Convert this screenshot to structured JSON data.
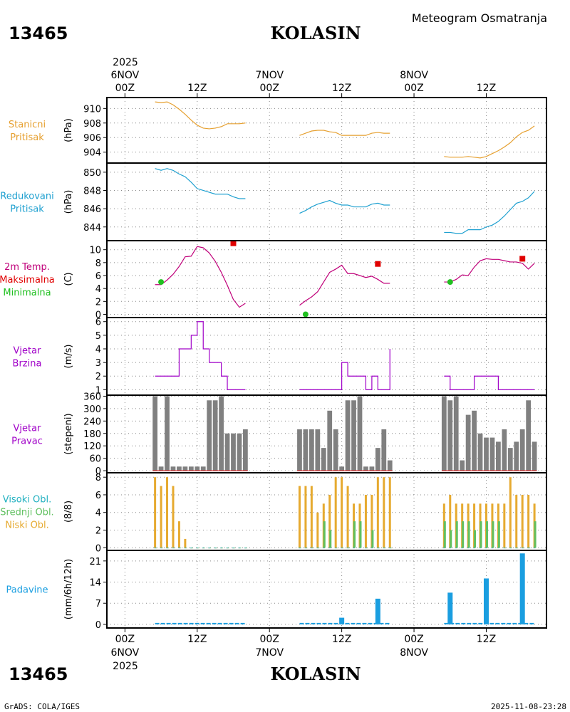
{
  "header": {
    "station_id": "13465",
    "station_name": "KOLASIN",
    "meteogram_title": "Meteogram Osmatranja",
    "footer_left": "GrADS: COLA/IGES",
    "footer_right": "2025-11-08-23:28"
  },
  "time_axis": {
    "year": "2025",
    "day_labels": [
      "6NOV",
      "7NOV",
      "8NOV"
    ],
    "tick_labels": [
      "00Z",
      "12Z",
      "00Z",
      "12Z",
      "00Z",
      "12Z"
    ],
    "tick_hours": [
      0,
      12,
      24,
      36,
      48,
      60
    ],
    "range_hours": [
      -3,
      70
    ]
  },
  "colors": {
    "pressure": "#e6a030",
    "reduced_pressure": "#1ea0d0",
    "temp": "#c0007a",
    "max": "#e00000",
    "min": "#20c020",
    "wind": "#a000c8",
    "dir_bar": "#808080",
    "low_cloud": "#e6aa30",
    "mid_cloud": "#60c060",
    "high_cloud": "#20b0c0",
    "precip": "#1a9ee0"
  },
  "chart_data": [
    {
      "type": "line",
      "id": "station_pressure",
      "labels": [
        "Stanicni",
        "Pritisak"
      ],
      "ylabel": "(hPa)",
      "ylim": [
        902.5,
        911.5
      ],
      "yticks": [
        904,
        906,
        908,
        910
      ],
      "series": [
        {
          "name": "Stanicni Pritisak",
          "segments": [
            {
              "x": [
                5,
                6,
                7,
                8,
                9,
                10,
                11,
                12,
                13,
                14,
                15,
                16,
                17,
                18,
                19,
                20
              ],
              "y": [
                910.9,
                910.8,
                910.9,
                910.5,
                909.9,
                909.2,
                908.4,
                907.7,
                907.3,
                907.2,
                907.3,
                907.5,
                907.9,
                907.9,
                907.9,
                908.0
              ]
            },
            {
              "x": [
                29,
                30,
                31,
                32,
                33,
                34,
                35,
                36,
                37,
                38,
                39,
                40,
                41,
                42,
                43,
                44
              ],
              "y": [
                906.3,
                906.6,
                906.9,
                907.0,
                907.0,
                906.8,
                906.7,
                906.3,
                906.3,
                906.3,
                906.3,
                906.3,
                906.6,
                906.7,
                906.6,
                906.6
              ]
            },
            {
              "x": [
                53,
                54,
                55,
                56,
                57,
                58,
                59,
                60,
                61,
                62,
                63,
                64,
                65,
                66,
                67,
                68
              ],
              "y": [
                903.4,
                903.3,
                903.3,
                903.3,
                903.4,
                903.3,
                903.2,
                903.4,
                903.8,
                904.2,
                904.7,
                905.3,
                906.1,
                906.7,
                907.0,
                907.6
              ]
            }
          ]
        }
      ]
    },
    {
      "type": "line",
      "id": "reduced_pressure",
      "labels": [
        "Redukovani",
        "Pritisak"
      ],
      "ylabel": "(hPa)",
      "ylim": [
        842.5,
        851.0
      ],
      "yticks": [
        844,
        846,
        848,
        850
      ],
      "series": [
        {
          "name": "Redukovani Pritisak",
          "segments": [
            {
              "x": [
                5,
                6,
                7,
                8,
                9,
                10,
                11,
                12,
                13,
                14,
                15,
                16,
                17,
                18,
                19,
                20
              ],
              "y": [
                850.4,
                850.2,
                850.4,
                850.2,
                849.8,
                849.5,
                848.9,
                848.2,
                848.0,
                847.8,
                847.6,
                847.6,
                847.6,
                847.3,
                847.1,
                847.1
              ]
            },
            {
              "x": [
                29,
                30,
                31,
                32,
                33,
                34,
                35,
                36,
                37,
                38,
                39,
                40,
                41,
                42,
                43,
                44
              ],
              "y": [
                845.5,
                845.8,
                846.2,
                846.5,
                846.7,
                846.9,
                846.6,
                846.4,
                846.4,
                846.2,
                846.2,
                846.2,
                846.5,
                846.6,
                846.4,
                846.4
              ]
            },
            {
              "x": [
                53,
                54,
                55,
                56,
                57,
                58,
                59,
                60,
                61,
                62,
                63,
                64,
                65,
                66,
                67,
                68
              ],
              "y": [
                843.4,
                843.4,
                843.3,
                843.3,
                843.7,
                843.7,
                843.7,
                844.0,
                844.2,
                844.6,
                845.2,
                845.9,
                846.6,
                846.8,
                847.2,
                847.9
              ]
            }
          ]
        }
      ]
    },
    {
      "type": "line",
      "id": "temperature",
      "labels": [
        "2m Temp.",
        "Maksimalna",
        "Minimalna"
      ],
      "ylabel": "(C)",
      "ylim": [
        -0.5,
        11.4
      ],
      "yticks": [
        0,
        2,
        4,
        6,
        8,
        10
      ],
      "series": [
        {
          "name": "2m Temp.",
          "segments": [
            {
              "x": [
                5,
                6,
                7,
                8,
                9,
                10,
                11,
                12,
                13,
                14,
                15,
                16,
                17,
                18,
                19,
                20
              ],
              "y": [
                4.6,
                4.6,
                5.3,
                6.2,
                7.4,
                8.9,
                9.0,
                10.5,
                10.3,
                9.5,
                8.2,
                6.5,
                4.5,
                2.3,
                1.1,
                1.7
              ]
            },
            {
              "x": [
                29,
                30,
                31,
                32,
                33,
                34,
                35,
                36,
                37,
                38,
                39,
                40,
                41,
                42,
                43,
                44
              ],
              "y": [
                1.4,
                2.1,
                2.7,
                3.5,
                5.0,
                6.5,
                7.0,
                7.6,
                6.3,
                6.3,
                6.0,
                5.7,
                5.9,
                5.4,
                4.8,
                4.8
              ]
            },
            {
              "x": [
                53,
                54,
                55,
                56,
                57,
                58,
                59,
                60,
                61,
                62,
                63,
                64,
                65,
                66,
                67,
                68
              ],
              "y": [
                5.0,
                5.0,
                5.4,
                6.1,
                6.0,
                7.3,
                8.3,
                8.6,
                8.5,
                8.5,
                8.3,
                8.1,
                8.1,
                7.9,
                7.0,
                7.9
              ]
            }
          ]
        }
      ],
      "max_points": {
        "name": "Maksimalna",
        "x": [
          18,
          42,
          66
        ],
        "y": [
          11.0,
          7.8,
          8.6
        ]
      },
      "min_points": {
        "name": "Minimalna",
        "x": [
          6,
          30,
          54
        ],
        "y": [
          5.0,
          0.0,
          5.0
        ]
      }
    },
    {
      "type": "line",
      "id": "wind_speed",
      "labels": [
        "Vjetar",
        "Brzina"
      ],
      "ylabel": "(m/s)",
      "ylim": [
        0.6,
        6.3
      ],
      "yticks": [
        1,
        2,
        3,
        4,
        5,
        6
      ],
      "series": [
        {
          "name": "Vjetar Brzina",
          "step": true,
          "segments": [
            {
              "x": [
                5,
                6,
                7,
                8,
                9,
                10,
                11,
                12,
                13,
                14,
                15,
                16,
                17,
                18,
                19,
                20
              ],
              "y": [
                2,
                2,
                2,
                2,
                4,
                4,
                5,
                6,
                4,
                3,
                3,
                2,
                1,
                1,
                1,
                1
              ]
            },
            {
              "x": [
                29,
                30,
                31,
                32,
                33,
                34,
                35,
                36,
                37,
                38,
                39,
                40,
                41,
                42,
                43,
                44
              ],
              "y": [
                1,
                1,
                1,
                1,
                1,
                1,
                1,
                3,
                2,
                2,
                2,
                1,
                2,
                1,
                1,
                4
              ]
            },
            {
              "x": [
                53,
                54,
                55,
                56,
                57,
                58,
                59,
                60,
                61,
                62,
                63,
                64,
                65,
                66,
                67,
                68
              ],
              "y": [
                2,
                1,
                1,
                1,
                1,
                2,
                2,
                2,
                2,
                1,
                1,
                1,
                1,
                1,
                1,
                1
              ]
            }
          ]
        }
      ]
    },
    {
      "type": "bar",
      "id": "wind_direction",
      "labels": [
        "Vjetar",
        "Pravac"
      ],
      "ylabel": "(stepeni)",
      "ylim": [
        -10,
        365
      ],
      "yticks": [
        0,
        60,
        120,
        180,
        240,
        300,
        360
      ],
      "x": [
        5,
        6,
        7,
        8,
        9,
        10,
        11,
        12,
        13,
        14,
        15,
        16,
        17,
        18,
        19,
        20,
        29,
        30,
        31,
        32,
        33,
        34,
        35,
        36,
        37,
        38,
        39,
        40,
        41,
        42,
        43,
        44,
        53,
        54,
        55,
        56,
        57,
        58,
        59,
        60,
        61,
        62,
        63,
        64,
        65,
        66,
        67,
        68
      ],
      "values": [
        360,
        20,
        360,
        20,
        20,
        20,
        20,
        20,
        20,
        340,
        340,
        360,
        180,
        180,
        180,
        200,
        200,
        200,
        200,
        200,
        110,
        290,
        200,
        20,
        340,
        340,
        360,
        20,
        20,
        110,
        200,
        50,
        360,
        340,
        360,
        50,
        270,
        290,
        180,
        160,
        160,
        140,
        200,
        110,
        140,
        200,
        340,
        140
      ]
    },
    {
      "type": "bar",
      "id": "cloud_cover",
      "labels": [
        "Visoki Obl.",
        "Srednji Obl.",
        "Niski Obl."
      ],
      "ylabel": "(8/8)",
      "ylim": [
        -0.3,
        8.5
      ],
      "yticks": [
        0,
        2,
        4,
        6,
        8
      ],
      "x": [
        5,
        6,
        7,
        8,
        9,
        10,
        11,
        12,
        13,
        14,
        15,
        16,
        17,
        18,
        19,
        20,
        29,
        30,
        31,
        32,
        33,
        34,
        35,
        36,
        37,
        38,
        39,
        40,
        41,
        42,
        43,
        44,
        53,
        54,
        55,
        56,
        57,
        58,
        59,
        60,
        61,
        62,
        63,
        64,
        65,
        66,
        67,
        68
      ],
      "series": [
        {
          "name": "Niski Obl.",
          "values": [
            8,
            7,
            8,
            7,
            3,
            1,
            0,
            0,
            0,
            0,
            0,
            0,
            0,
            0,
            0,
            0,
            7,
            7,
            7,
            4,
            5,
            6,
            8,
            8,
            7,
            5,
            5,
            6,
            6,
            8,
            8,
            8,
            5,
            6,
            5,
            5,
            5,
            5,
            5,
            5,
            5,
            5,
            5,
            8,
            6,
            6,
            6,
            5
          ]
        },
        {
          "name": "Srednji Obl.",
          "values": [
            0,
            0,
            0,
            0,
            0,
            0,
            0,
            0,
            0,
            0,
            0,
            0,
            0,
            0,
            0,
            0,
            0,
            0,
            0,
            0,
            3,
            2,
            0,
            0,
            0,
            3,
            3,
            0,
            2,
            0,
            0,
            0,
            3,
            2,
            3,
            3,
            3,
            2,
            3,
            3,
            3,
            3,
            0,
            0,
            0,
            0,
            0,
            3
          ]
        },
        {
          "name": "Visoki Obl.",
          "values": [
            0,
            0,
            0,
            0,
            0,
            0,
            0,
            0,
            0,
            0,
            0,
            0,
            0,
            0,
            0,
            0,
            0,
            0,
            0,
            0,
            0,
            0,
            0,
            0,
            0,
            0,
            0,
            0,
            0,
            0,
            0,
            0,
            0,
            0,
            0,
            0,
            0,
            0,
            0,
            0,
            0,
            0,
            0,
            0,
            0,
            0,
            0,
            0
          ]
        }
      ]
    },
    {
      "type": "bar",
      "id": "precipitation",
      "labels": [
        "Padavine"
      ],
      "ylabel": "(mm/6h/12h)",
      "ylim": [
        -1.2,
        24.5
      ],
      "yticks": [
        0,
        7,
        14,
        21
      ],
      "x": [
        36,
        42,
        54,
        60,
        66
      ],
      "values": [
        2.2,
        8.5,
        10.5,
        15.2,
        23.5
      ],
      "baseline_segments": [
        [
          5,
          20
        ],
        [
          29,
          44
        ],
        [
          53,
          68
        ]
      ]
    }
  ]
}
